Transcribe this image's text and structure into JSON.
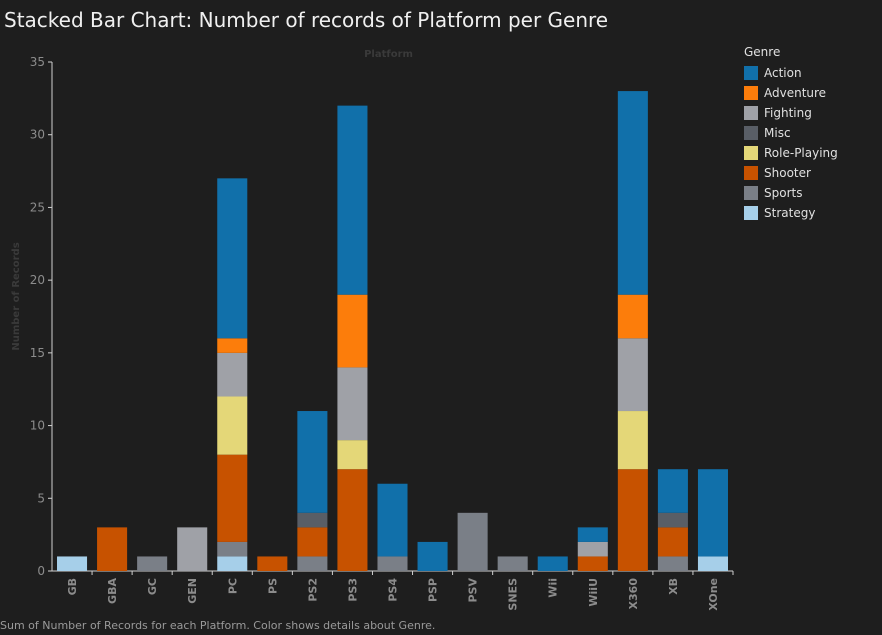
{
  "chart_data": {
    "type": "bar",
    "stacked": true,
    "title": "Stacked Bar Chart: Number of records of Platform per Genre",
    "xlabel": "Platform",
    "ylabel": "Number of Records",
    "ylim": [
      0,
      35
    ],
    "yticks": [
      0,
      5,
      10,
      15,
      20,
      25,
      30,
      35
    ],
    "grid": false,
    "legend_title": "Genre",
    "legend_position": "right",
    "footer": "Sum of Number of Records for each Platform.  Color shows details about Genre.",
    "categories": [
      "GB",
      "GBA",
      "GC",
      "GEN",
      "PC",
      "PS",
      "PS2",
      "PS3",
      "PS4",
      "PSP",
      "PSV",
      "SNES",
      "Wii",
      "WiiU",
      "X360",
      "XB",
      "XOne"
    ],
    "series": [
      {
        "name": "Strategy",
        "color": "#a6cfe9",
        "values": [
          1,
          0,
          0,
          0,
          1,
          0,
          0,
          0,
          0,
          0,
          0,
          0,
          0,
          0,
          0,
          0,
          1
        ]
      },
      {
        "name": "Sports",
        "color": "#7a7f87",
        "values": [
          0,
          0,
          1,
          0,
          1,
          0,
          1,
          0,
          1,
          0,
          4,
          1,
          0,
          0,
          0,
          1,
          0
        ]
      },
      {
        "name": "Shooter",
        "color": "#c75200",
        "values": [
          0,
          3,
          0,
          0,
          6,
          1,
          2,
          7,
          0,
          0,
          0,
          0,
          0,
          1,
          7,
          2,
          0
        ]
      },
      {
        "name": "Role-Playing",
        "color": "#e4d778",
        "values": [
          0,
          0,
          0,
          0,
          4,
          0,
          0,
          2,
          0,
          0,
          0,
          0,
          0,
          0,
          4,
          0,
          0
        ]
      },
      {
        "name": "Misc",
        "color": "#595e66",
        "values": [
          0,
          0,
          0,
          0,
          0,
          0,
          1,
          0,
          0,
          0,
          0,
          0,
          0,
          0,
          0,
          1,
          0
        ]
      },
      {
        "name": "Fighting",
        "color": "#9fa1a7",
        "values": [
          0,
          0,
          0,
          3,
          3,
          0,
          0,
          5,
          0,
          0,
          0,
          0,
          0,
          1,
          5,
          0,
          0
        ]
      },
      {
        "name": "Adventure",
        "color": "#fc7d0b",
        "values": [
          0,
          0,
          0,
          0,
          1,
          0,
          0,
          5,
          0,
          0,
          0,
          0,
          0,
          0,
          3,
          0,
          0
        ]
      },
      {
        "name": "Action",
        "color": "#1170aa",
        "values": [
          0,
          0,
          0,
          0,
          11,
          0,
          7,
          13,
          5,
          2,
          0,
          0,
          1,
          1,
          14,
          3,
          6
        ]
      }
    ],
    "legend_order": [
      "Action",
      "Adventure",
      "Fighting",
      "Misc",
      "Role-Playing",
      "Shooter",
      "Sports",
      "Strategy"
    ]
  }
}
